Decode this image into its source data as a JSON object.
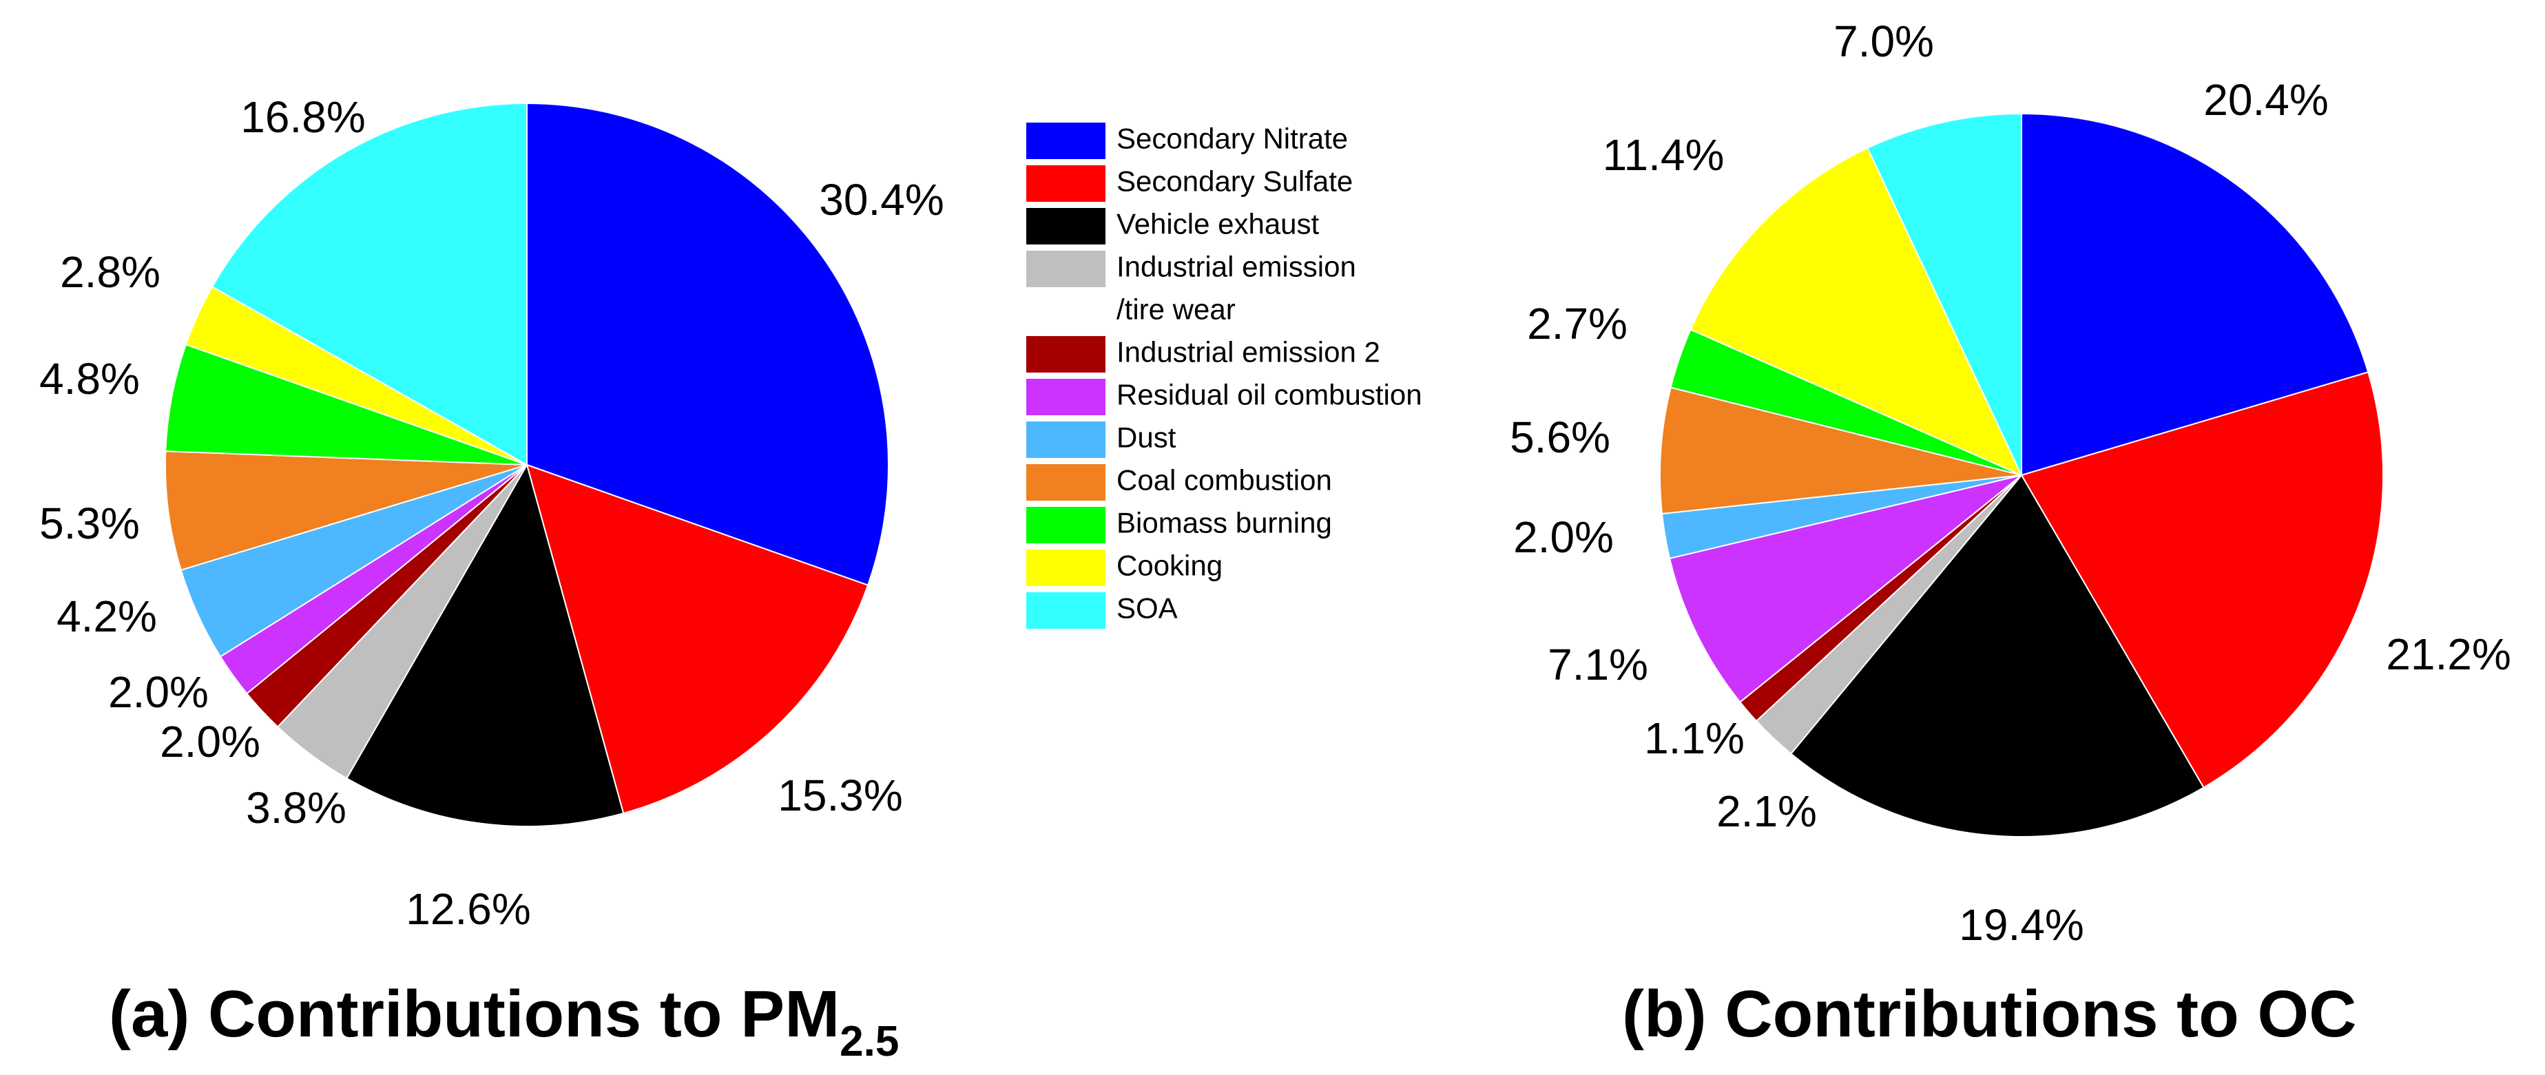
{
  "legend": [
    {
      "lines": [
        "Secondary Nitrate"
      ],
      "color": "#0000FF"
    },
    {
      "lines": [
        "Secondary Sulfate"
      ],
      "color": "#FF0000"
    },
    {
      "lines": [
        "Vehicle exhaust"
      ],
      "color": "#000000"
    },
    {
      "lines": [
        "Industrial emission",
        "/tire wear"
      ],
      "color": "#BFBFBF"
    },
    {
      "lines": [
        "Industrial emission 2"
      ],
      "color": "#A50000"
    },
    {
      "lines": [
        "Residual oil combustion"
      ],
      "color": "#CC33FF"
    },
    {
      "lines": [
        "Dust"
      ],
      "color": "#4DB8FF"
    },
    {
      "lines": [
        "Coal combustion"
      ],
      "color": "#F08020"
    },
    {
      "lines": [
        "Biomass burning"
      ],
      "color": "#00FF00"
    },
    {
      "lines": [
        "Cooking"
      ],
      "color": "#FFFF00"
    },
    {
      "lines": [
        "SOA"
      ],
      "color": "#33FFFF"
    }
  ],
  "chart_data": [
    {
      "type": "pie",
      "title_main": "(a) Contributions to PM",
      "title_sub": "2.5",
      "categories": [
        "Secondary Nitrate",
        "Secondary Sulfate",
        "Vehicle exhaust",
        "Industrial emission /tire wear",
        "Industrial emission 2",
        "Residual oil combustion",
        "Dust",
        "Coal combustion",
        "Biomass burning",
        "Cooking",
        "SOA"
      ],
      "values": [
        30.4,
        15.3,
        12.6,
        3.8,
        2.0,
        2.0,
        4.2,
        5.3,
        4.8,
        2.8,
        16.8
      ],
      "labels": [
        "30.4%",
        "15.3%",
        "12.6%",
        "3.8%",
        "2.0%",
        "2.0%",
        "4.2%",
        "5.3%",
        "4.8%",
        "2.8%",
        "16.8%"
      ]
    },
    {
      "type": "pie",
      "title_main": "(b) Contributions to OC",
      "title_sub": "",
      "categories": [
        "Secondary Nitrate",
        "Secondary Sulfate",
        "Vehicle exhaust",
        "Industrial emission /tire wear",
        "Industrial emission 2",
        "Residual oil combustion",
        "Dust",
        "Coal combustion",
        "Biomass burning",
        "Cooking",
        "SOA"
      ],
      "values": [
        20.4,
        21.2,
        19.4,
        2.1,
        1.1,
        7.1,
        2.0,
        5.6,
        2.7,
        11.4,
        7.0
      ],
      "labels": [
        "20.4%",
        "21.2%",
        "19.4%",
        "2.1%",
        "1.1%",
        "7.1%",
        "2.0%",
        "5.6%",
        "2.7%",
        "11.4%",
        "7.0%"
      ]
    }
  ]
}
